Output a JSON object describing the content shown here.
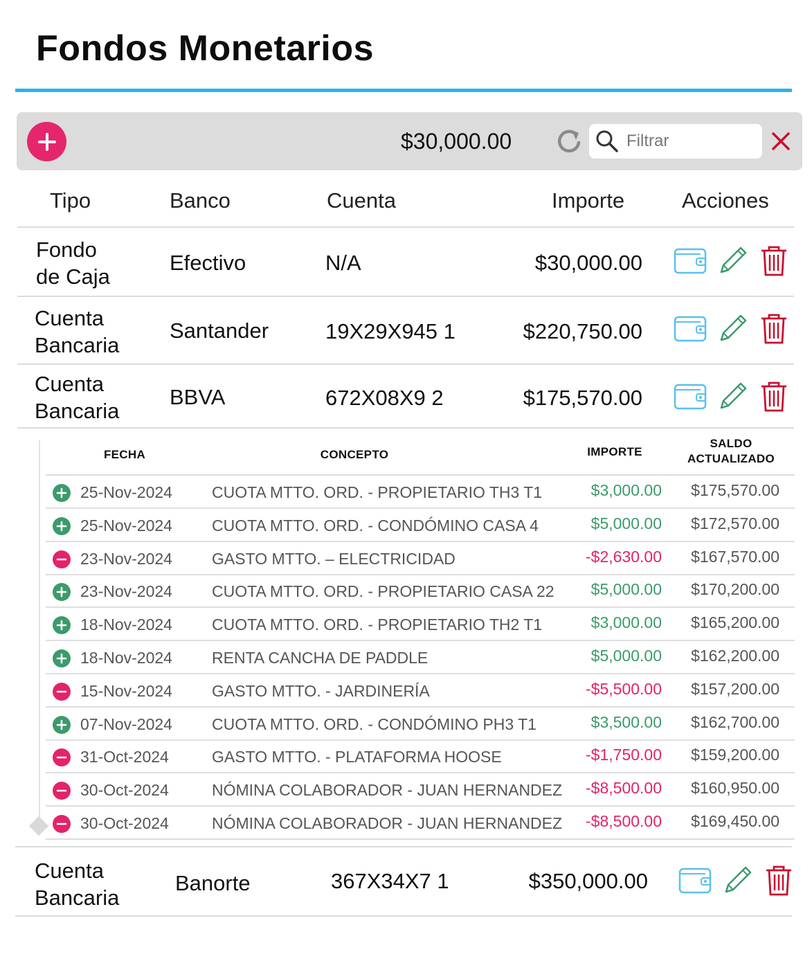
{
  "page": {
    "title": "Fondos Monetarios"
  },
  "toolbar": {
    "total": "$30,000.00",
    "search_placeholder": "Filtrar"
  },
  "table": {
    "headers": {
      "tipo": "Tipo",
      "banco": "Banco",
      "cuenta": "Cuenta",
      "importe": "Importe",
      "acciones": "Acciones"
    },
    "rows": [
      {
        "tipo_l1": "Fondo",
        "tipo_l2": "de Caja",
        "banco": "Efectivo",
        "cuenta": "N/A",
        "importe": "$30,000.00"
      },
      {
        "tipo_l1": "Cuenta",
        "tipo_l2": "Bancaria",
        "banco": "Santander",
        "cuenta": "19X29X945 1",
        "importe": "$220,750.00"
      },
      {
        "tipo_l1": "Cuenta",
        "tipo_l2": "Bancaria",
        "banco": "BBVA",
        "cuenta": "672X08X9 2",
        "importe": "$175,570.00"
      },
      {
        "tipo_l1": "Cuenta",
        "tipo_l2": "Bancaria",
        "banco": "Banorte",
        "cuenta": "367X34X7 1",
        "importe": "$350,000.00"
      }
    ]
  },
  "movements": {
    "headers": {
      "fecha": "FECHA",
      "concepto": "CONCEPTO",
      "importe": "IMPORTE",
      "saldo_l1": "SALDO",
      "saldo_l2": "ACTUALIZADO"
    },
    "rows": [
      {
        "kind": "plus",
        "fecha": "25-Nov-2024",
        "concepto": "CUOTA MTTO. ORD. - PROPIETARIO TH3 T1",
        "importe": "$3,000.00",
        "saldo": "$175,570.00"
      },
      {
        "kind": "plus",
        "fecha": "25-Nov-2024",
        "concepto": "CUOTA MTTO. ORD. - CONDÓMINO CASA 4",
        "importe": "$5,000.00",
        "saldo": "$172,570.00"
      },
      {
        "kind": "minus",
        "fecha": "23-Nov-2024",
        "concepto": "GASTO MTTO. – ELECTRICIDAD",
        "importe": "-$2,630.00",
        "saldo": "$167,570.00"
      },
      {
        "kind": "plus",
        "fecha": "23-Nov-2024",
        "concepto": "CUOTA MTTO. ORD. - PROPIETARIO CASA 22",
        "importe": "$5,000.00",
        "saldo": "$170,200.00"
      },
      {
        "kind": "plus",
        "fecha": "18-Nov-2024",
        "concepto": "CUOTA MTTO. ORD. - PROPIETARIO TH2 T1",
        "importe": "$3,000.00",
        "saldo": "$165,200.00"
      },
      {
        "kind": "plus",
        "fecha": "18-Nov-2024",
        "concepto": "RENTA CANCHA DE PADDLE",
        "importe": "$5,000.00",
        "saldo": "$162,200.00"
      },
      {
        "kind": "minus",
        "fecha": "15-Nov-2024",
        "concepto": "GASTO MTTO. - JARDINERÍA",
        "importe": "-$5,500.00",
        "saldo": "$157,200.00"
      },
      {
        "kind": "plus",
        "fecha": "07-Nov-2024",
        "concepto": "CUOTA MTTO. ORD. - CONDÓMINO PH3 T1",
        "importe": "$3,500.00",
        "saldo": "$162,700.00"
      },
      {
        "kind": "minus",
        "fecha": "31-Oct-2024",
        "concepto": "GASTO MTTO. - PLATAFORMA HOOSE",
        "importe": "-$1,750.00",
        "saldo": "$159,200.00"
      },
      {
        "kind": "minus",
        "fecha": "30-Oct-2024",
        "concepto": "NÓMINA COLABORADOR - JUAN HERNANDEZ",
        "importe": "-$8,500.00",
        "saldo": "$160,950.00"
      },
      {
        "kind": "minus",
        "fecha": "30-Oct-2024",
        "concepto": "NÓMINA COLABORADOR - JUAN HERNANDEZ",
        "importe": "-$8,500.00",
        "saldo": "$169,450.00"
      }
    ]
  },
  "icons": {
    "add": "plus-icon",
    "refresh": "refresh-icon",
    "search": "search-icon",
    "clear": "close-icon",
    "wallet": "wallet-icon",
    "edit": "pencil-icon",
    "delete": "trash-icon",
    "income": "plus-circle-icon",
    "expense": "minus-circle-icon"
  },
  "colors": {
    "accent_rule": "#2bb3ec",
    "add_button": "#e5266d",
    "positive": "#3c9a6c",
    "negative": "#e3236a",
    "wallet": "#5bc0eb",
    "edit": "#3c9a6c",
    "delete": "#c8102e",
    "clear": "#c8102e"
  }
}
